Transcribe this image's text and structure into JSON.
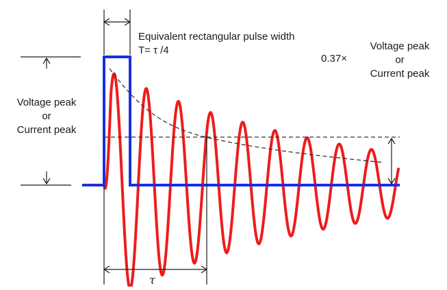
{
  "labels": {
    "pulse_width_title": "Equivalent rectangular pulse width",
    "pulse_width_formula": "T= τ /4",
    "peak_left": [
      "Voltage peak",
      "or",
      "Current peak"
    ],
    "peak_factor": "0.37×",
    "peak_right": [
      "Voltage peak",
      "or",
      "Current peak"
    ],
    "period_symbol": "τ"
  },
  "colors": {
    "pulse": "#1a2fe0",
    "oscillation": "#ee1c1c",
    "envelope": "#333333",
    "annotation": "#1a1a1a"
  }
}
